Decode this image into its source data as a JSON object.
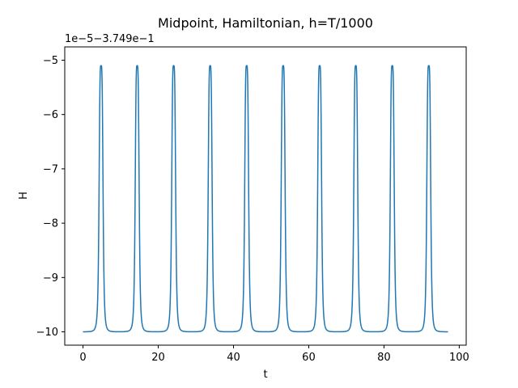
{
  "chart_data": {
    "type": "line",
    "title": "Midpoint, Hamiltonian, h=T/1000",
    "xlabel": "t",
    "ylabel": "H",
    "offset_text": "1e−5−3.749e−1",
    "xlim": [
      -4.85,
      101.85
    ],
    "ylim": [
      -10.245,
      -4.755
    ],
    "xticks": [
      0,
      20,
      40,
      60,
      80,
      100
    ],
    "xtick_labels": [
      "0",
      "20",
      "40",
      "60",
      "80",
      "100"
    ],
    "yticks": [
      -5,
      -6,
      -7,
      -8,
      -9,
      -10
    ],
    "ytick_labels": [
      "−5",
      "−6",
      "−7",
      "−8",
      "−9",
      "−10"
    ],
    "grid": false,
    "series": [
      {
        "color": "#1f77b4",
        "x_range": [
          0,
          97
        ],
        "baseline": -10,
        "peak": -5.1,
        "peak_t": [
          4.8,
          14.4,
          24.1,
          33.8,
          43.5,
          53.2,
          62.9,
          72.5,
          82.2,
          91.9
        ]
      }
    ]
  }
}
